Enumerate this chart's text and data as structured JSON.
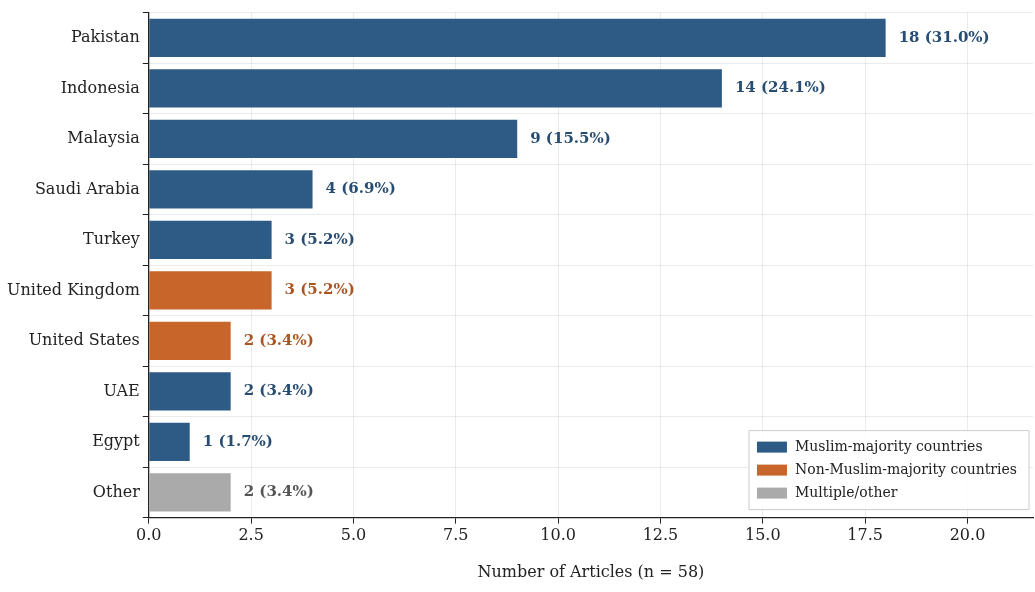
{
  "chart_data": {
    "type": "bar",
    "orientation": "horizontal",
    "stacked": true,
    "xlabel": "Number of Articles (n = 58)",
    "categories": [
      "Pakistan",
      "Indonesia",
      "Malaysia",
      "Saudi Arabia",
      "Turkey",
      "United Kingdom",
      "United States",
      "UAE",
      "Egypt",
      "Other"
    ],
    "series": [
      {
        "name": "Muslim-majority countries",
        "color": "#2e5b86",
        "values": [
          18,
          14,
          9,
          4,
          3,
          null,
          null,
          2,
          1,
          null
        ],
        "value_labels": [
          "18 (31.0%)",
          "14 (24.1%)",
          "9 (15.5%)",
          "4 (6.9%)",
          "3 (5.2%)",
          null,
          null,
          "2 (3.4%)",
          "1 (1.7%)",
          null
        ]
      },
      {
        "name": "Non-Muslim-majority countries",
        "color": "#c8652a",
        "values": [
          null,
          null,
          null,
          null,
          null,
          3,
          2,
          null,
          null,
          null
        ],
        "value_labels": [
          null,
          null,
          null,
          null,
          null,
          "3 (5.2%)",
          "2 (3.4%)",
          null,
          null,
          null
        ]
      },
      {
        "name": "Multiple/other",
        "color": "#aaaaaa",
        "values": [
          null,
          null,
          null,
          null,
          null,
          null,
          null,
          null,
          null,
          2
        ],
        "value_labels": [
          null,
          null,
          null,
          null,
          null,
          null,
          null,
          null,
          null,
          "2 (3.4%)"
        ]
      }
    ],
    "xlim": [
      0,
      21.6
    ],
    "xticks": [
      {
        "value": 0,
        "label": "0.0"
      },
      2.5,
      {
        "value": 5,
        "label": "5.0"
      },
      7.5,
      {
        "value": 10,
        "label": "10.0"
      },
      12.5,
      {
        "value": 15,
        "label": "15.0"
      },
      17.5,
      {
        "value": 20,
        "label": "20.0"
      }
    ],
    "grid": true,
    "legend": "bottom right"
  }
}
